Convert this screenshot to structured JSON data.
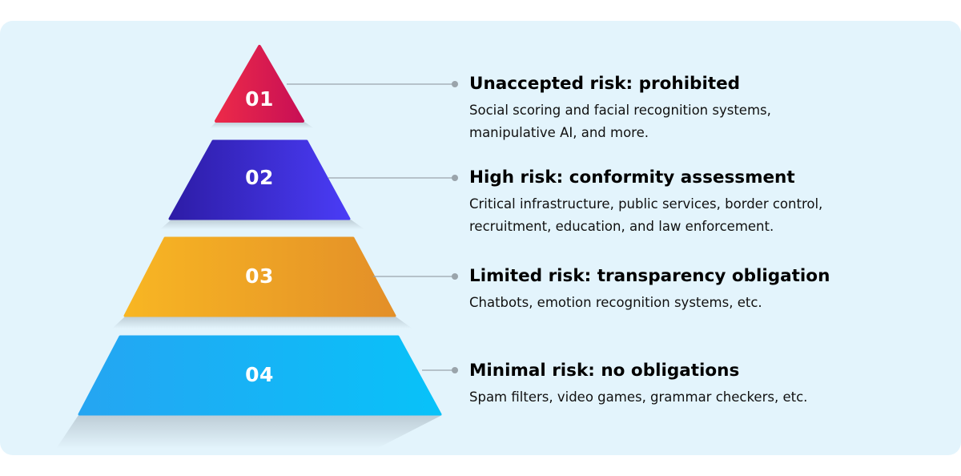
{
  "colors": {
    "background": "#e3f4fc",
    "level1": "#e01e50",
    "level2": "#3a26d4",
    "level3": "#f0a82a",
    "level4": "#1ab2f5",
    "connector": "#9aa4ab"
  },
  "levels": [
    {
      "number": "01",
      "title": "Unaccepted risk: prohibited",
      "description_lines": [
        "Social scoring and facial recognition systems,",
        "manipulative AI, and more."
      ]
    },
    {
      "number": "02",
      "title": "High risk: conformity assessment",
      "description_lines": [
        "Critical infrastructure, public services, border control,",
        "recruitment, education, and law enforcement."
      ]
    },
    {
      "number": "03",
      "title": "Limited risk: transparency obligation",
      "description_lines": [
        "Chatbots, emotion recognition systems, etc."
      ]
    },
    {
      "number": "04",
      "title": "Minimal risk: no obligations",
      "description_lines": [
        "Spam filters, video games, grammar checkers, etc."
      ]
    }
  ]
}
